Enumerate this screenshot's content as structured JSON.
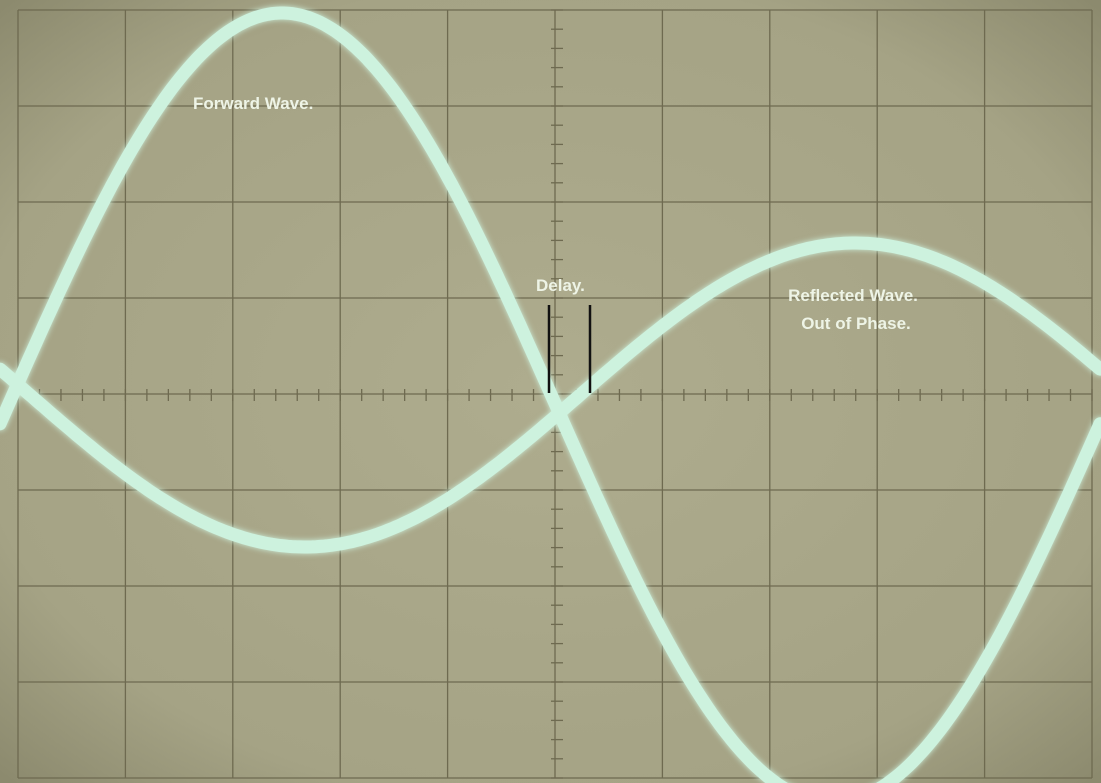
{
  "labels": {
    "forward": "Forward Wave.",
    "delay": "Delay.",
    "reflected": [
      "Reflected Wave.",
      "Out of Phase."
    ]
  }
}
